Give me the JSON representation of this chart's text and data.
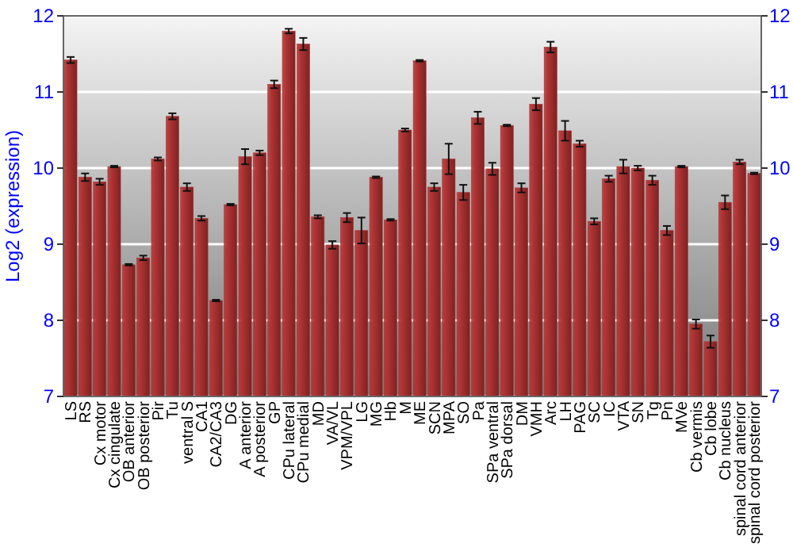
{
  "chart_data": {
    "type": "bar",
    "ylabel": "Log2 (expression)",
    "categories": [
      "LS",
      "RS",
      "Cx motor",
      "Cx cingulate",
      "OB anterior",
      "OB posterior",
      "Pir",
      "Tu",
      "ventral S",
      "CA1",
      "CA2/CA3",
      "DG",
      "A anterior",
      "A posterior",
      "GP",
      "CPu lateral",
      "CPu medial",
      "MD",
      "VA/VL",
      "VPM/VPL",
      "LG",
      "MG",
      "Hb",
      "M",
      "ME",
      "SCN",
      "MPA",
      "SO",
      "Pa",
      "SPa ventral",
      "SPa dorsal",
      "DM",
      "VMH",
      "Arc",
      "LH",
      "PAG",
      "SC",
      "IC",
      "VTA",
      "SN",
      "Tg",
      "Pn",
      "MVe",
      "Cb vermis",
      "Cb lobe",
      "Cb nucleus",
      "spinal cord anterior",
      "spinal cord posterior"
    ],
    "values": [
      11.42,
      9.88,
      9.82,
      10.02,
      8.73,
      8.82,
      10.12,
      10.68,
      9.75,
      9.34,
      8.26,
      9.52,
      10.15,
      10.2,
      11.1,
      11.8,
      11.63,
      9.36,
      8.99,
      9.35,
      9.18,
      9.88,
      9.32,
      10.5,
      11.41,
      9.75,
      10.12,
      9.68,
      10.66,
      9.99,
      10.56,
      9.74,
      10.84,
      11.59,
      10.49,
      10.32,
      9.3,
      9.86,
      10.02,
      10.0,
      9.84,
      9.18,
      10.02,
      7.95,
      7.72,
      9.55,
      10.08,
      9.93
    ],
    "errors": [
      0.04,
      0.05,
      0.04,
      0.01,
      0.01,
      0.03,
      0.02,
      0.04,
      0.05,
      0.03,
      0.01,
      0.01,
      0.1,
      0.03,
      0.05,
      0.03,
      0.08,
      0.02,
      0.05,
      0.06,
      0.17,
      0.01,
      0.01,
      0.02,
      0.01,
      0.05,
      0.2,
      0.1,
      0.08,
      0.08,
      0.01,
      0.06,
      0.08,
      0.07,
      0.13,
      0.04,
      0.04,
      0.04,
      0.09,
      0.03,
      0.06,
      0.06,
      0.01,
      0.06,
      0.08,
      0.09,
      0.03,
      0.01
    ],
    "color": "#b03232",
    "ylim": [
      7,
      12
    ],
    "yticks": [
      7,
      8,
      9,
      10,
      11,
      12
    ],
    "y2lim": [
      7,
      12
    ],
    "y2ticks": [
      7,
      8,
      9,
      10,
      11,
      12
    ],
    "grid": "y"
  }
}
